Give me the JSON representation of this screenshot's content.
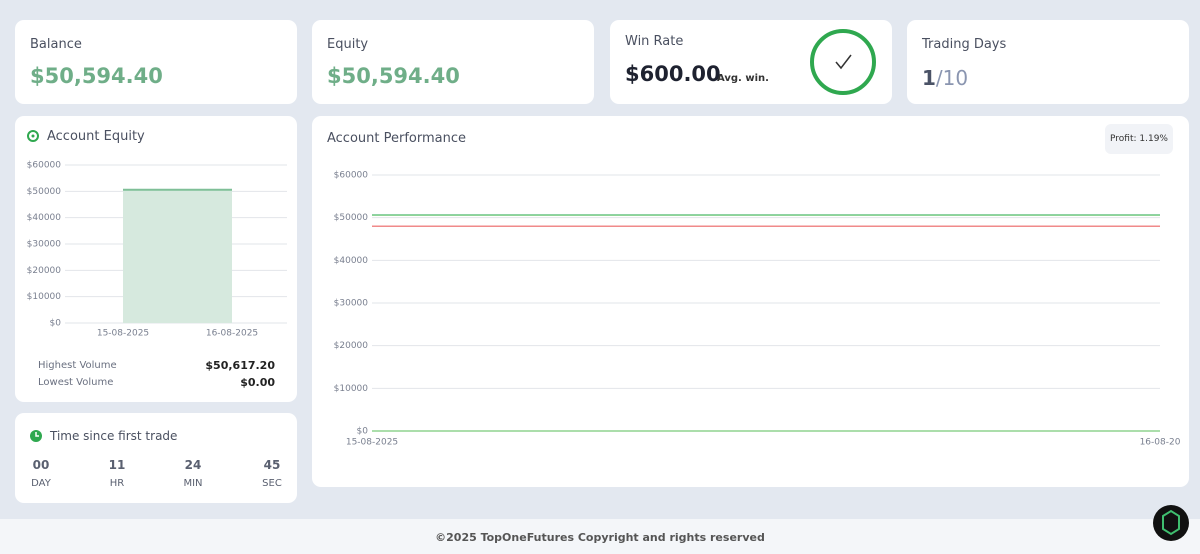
{
  "cards": [
    {
      "label": "Balance",
      "value": "$50,594.40"
    },
    {
      "label": "Equity",
      "value": "$50,594.40"
    }
  ],
  "win_rate": {
    "label": "Win Rate",
    "value": "$600.00",
    "note": "Avg. win."
  },
  "trading_days": {
    "label": "Trading Days",
    "done": "1",
    "total": "/10"
  },
  "account_equity": {
    "title": "Account Equity",
    "type": "bar",
    "xticks": [
      "15-08-2025",
      "16-08-2025"
    ],
    "values": [
      50617.2
    ],
    "color": "#d6e9de",
    "edge_color": "#7fbf97",
    "ylim": [
      0,
      60000
    ],
    "yticks": [
      {
        "value": 0,
        "label": "$0"
      },
      {
        "value": 10000,
        "label": "$10000"
      },
      {
        "value": 20000,
        "label": "$20000"
      },
      {
        "value": 30000,
        "label": "$30000"
      },
      {
        "value": 40000,
        "label": "$40000"
      },
      {
        "value": 50000,
        "label": "$50000"
      },
      {
        "value": 60000,
        "label": "$60000"
      }
    ],
    "grid": true,
    "stats": [
      {
        "label": "Highest Volume",
        "value": "$50,617.20"
      },
      {
        "label": "Lowest Volume",
        "value": "$0.00"
      }
    ]
  },
  "timer": {
    "title": "Time since first trade",
    "units": [
      {
        "value": "00",
        "label": "DAY"
      },
      {
        "value": "11",
        "label": "HR"
      },
      {
        "value": "24",
        "label": "MIN"
      },
      {
        "value": "45",
        "label": "SEC"
      }
    ]
  },
  "performance": {
    "title": "Account Performance",
    "badge": "Profit: 1.19%",
    "type": "line",
    "x": [
      "15-08-2025",
      "16-08-20"
    ],
    "series": [
      {
        "color": "#1f9e8f",
        "values": [
          50617.2,
          50617.2
        ]
      },
      {
        "color": "#8fd48f",
        "values": [
          50594.4,
          50594.4
        ]
      },
      {
        "color": "#f08a8a",
        "values": [
          48000,
          48000
        ]
      },
      {
        "color": "#8fd48f",
        "values": [
          0,
          0
        ]
      }
    ],
    "ylim": [
      0,
      60000
    ],
    "yticks": [
      {
        "value": 0,
        "label": "$0"
      },
      {
        "value": 10000,
        "label": "$10000"
      },
      {
        "value": 20000,
        "label": "$20000"
      },
      {
        "value": 30000,
        "label": "$30000"
      },
      {
        "value": 40000,
        "label": "$40000"
      },
      {
        "value": 50000,
        "label": "$50000"
      },
      {
        "value": 60000,
        "label": "$60000"
      }
    ],
    "grid": true
  },
  "footer": "©2025 TopOneFutures Copyright and rights reserved"
}
